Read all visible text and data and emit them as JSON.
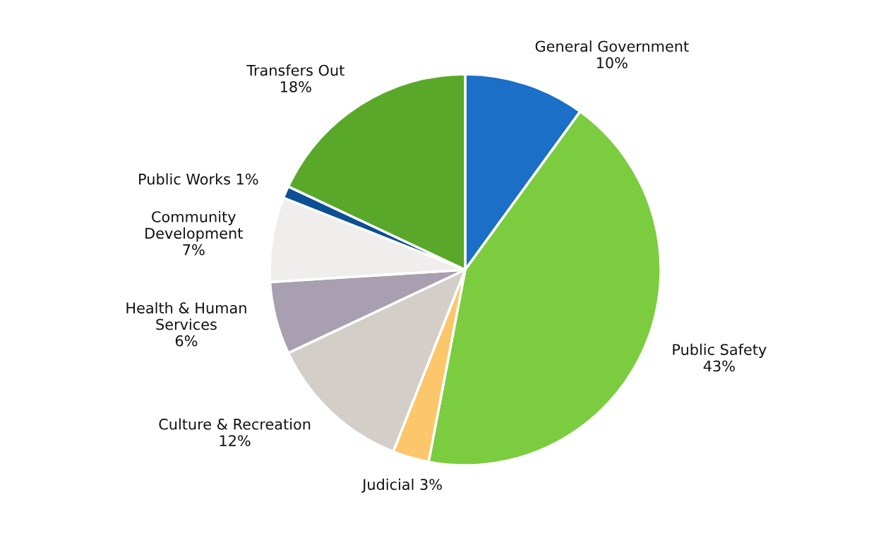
{
  "chart_data": {
    "type": "pie",
    "categories": [
      "General Government",
      "Public Safety",
      "Judicial",
      "Culture & Recreation",
      "Health & Human\nServices",
      "Community\nDevelopment",
      "Public Works",
      "Transfers Out"
    ],
    "values": [
      10,
      43,
      3,
      12,
      6,
      7,
      1,
      18
    ],
    "colors": [
      "#1c6fc6",
      "#7ccc40",
      "#fcc66a",
      "#d3cfc8",
      "#a8a0b0",
      "#efeeec",
      "#0d4f94",
      "#5aa82a"
    ],
    "value_labels": [
      "10%",
      "43%",
      "3%",
      "12%",
      "6%",
      "7%",
      "1%",
      "18%"
    ]
  }
}
